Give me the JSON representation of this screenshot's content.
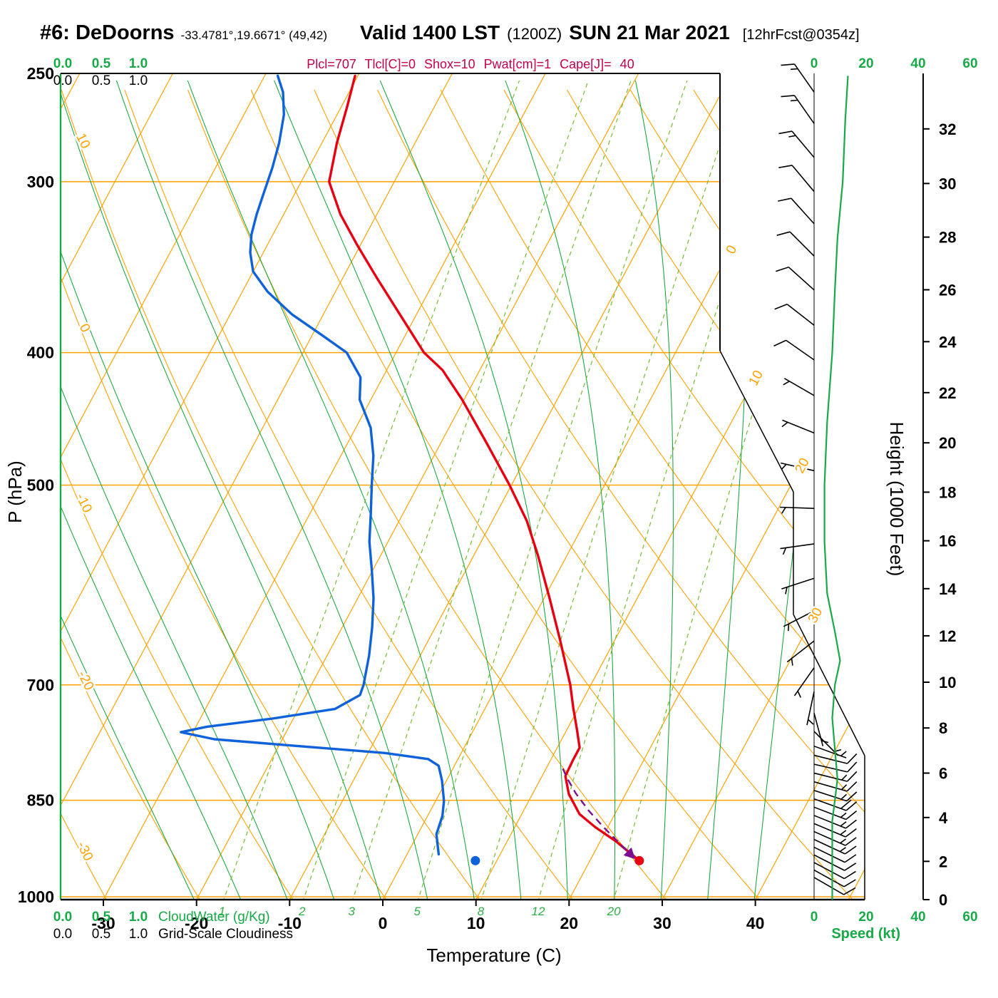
{
  "colors": {
    "orange": "#ffa203",
    "green": "#13a53b",
    "green_dash": "#77bb33",
    "green_ui": "#17aa47",
    "blue": "#0f62d9",
    "red": "#e60012",
    "purple": "#7d1090",
    "params": "#c2004e"
  },
  "chart_data": {
    "type": "skewt-logp",
    "header": {
      "station": "#6: DeDoorns",
      "coords": "-33.4781°,19.6671° (49,42)",
      "valid": "Valid 1400 LST",
      "zulu": "(1200Z)",
      "date": "SUN 21 Mar 2021",
      "fcst": "[12hrFcst@0354z]"
    },
    "params_line": "Plcl=707 Tlcl[C]=0 Shox=10 Pwat[cm]=1 Cape[J]= 40",
    "axes": {
      "pressure": {
        "label": "P (hPa)",
        "ticks": [
          250,
          300,
          400,
          500,
          700,
          850,
          1000
        ]
      },
      "temperature": {
        "label": "Temperature (C)",
        "ticks": [
          -30,
          -20,
          -10,
          0,
          10,
          20,
          30,
          40
        ]
      },
      "height": {
        "label": "Height (1000 Feet)",
        "ticks": [
          0,
          2,
          4,
          6,
          8,
          10,
          12,
          14,
          16,
          18,
          20,
          22,
          24,
          26,
          28,
          30,
          32
        ]
      },
      "speed": {
        "label": "Speed (kt)",
        "ticks": [
          0,
          20,
          40,
          60
        ]
      },
      "cloudwater": {
        "label": "CloudWater (g/Kg)",
        "ticks": [
          "0.0",
          "0.5",
          "1.0"
        ]
      },
      "cloudiness": {
        "label": "Grid-Scale Cloudiness",
        "ticks": [
          "0.0",
          "0.5",
          "1.0"
        ]
      }
    },
    "background": {
      "isotherms": {
        "start": -80,
        "end": 50,
        "step": 10,
        "right_labels": [
          0,
          10,
          20,
          30
        ]
      },
      "dry_adiabats": {
        "start": -40,
        "end": 120,
        "step": 10,
        "left_labels": [
          10,
          0,
          -10,
          -20,
          -30
        ]
      },
      "moist_adiabats": {
        "start": -20,
        "end": 40,
        "step": 5
      },
      "mixing_ratios": [
        1,
        2,
        3,
        5,
        8,
        12,
        20
      ]
    },
    "temperature_profile": [
      [
        941,
        25.3
      ],
      [
        911,
        21.7
      ],
      [
        889,
        18.6
      ],
      [
        870,
        16.2
      ],
      [
        841,
        13.9
      ],
      [
        816,
        12.5
      ],
      [
        794,
        12.4
      ],
      [
        778,
        12.4
      ],
      [
        755,
        11.1
      ],
      [
        727,
        9.4
      ],
      [
        700,
        7.8
      ],
      [
        650,
        4.2
      ],
      [
        605,
        0.6
      ],
      [
        563,
        -3.1
      ],
      [
        531,
        -6.3
      ],
      [
        500,
        -10.2
      ],
      [
        465,
        -15.2
      ],
      [
        433,
        -20.2
      ],
      [
        412,
        -24.0
      ],
      [
        400,
        -27.0
      ],
      [
        375,
        -31.8
      ],
      [
        353,
        -36.3
      ],
      [
        334,
        -40.3
      ],
      [
        317,
        -43.9
      ],
      [
        300,
        -47.0
      ],
      [
        281,
        -48.4
      ],
      [
        264,
        -49.4
      ],
      [
        251,
        -50.3
      ]
    ],
    "dewpoint_profile": [
      [
        931,
        3.4
      ],
      [
        900,
        2.0
      ],
      [
        873,
        1.6
      ],
      [
        851,
        0.9
      ],
      [
        822,
        -0.5
      ],
      [
        802,
        -1.7
      ],
      [
        793,
        -3.2
      ],
      [
        785,
        -8.2
      ],
      [
        776,
        -17.8
      ],
      [
        767,
        -27.3
      ],
      [
        758,
        -31.3
      ],
      [
        751,
        -28.8
      ],
      [
        741,
        -22.4
      ],
      [
        729,
        -16.1
      ],
      [
        712,
        -14.2
      ],
      [
        700,
        -14.4
      ],
      [
        666,
        -15.5
      ],
      [
        635,
        -16.8
      ],
      [
        605,
        -18.3
      ],
      [
        577,
        -20.1
      ],
      [
        550,
        -22.0
      ],
      [
        524,
        -23.5
      ],
      [
        500,
        -25.0
      ],
      [
        476,
        -26.5
      ],
      [
        454,
        -28.4
      ],
      [
        433,
        -31.2
      ],
      [
        417,
        -32.4
      ],
      [
        400,
        -35.3
      ],
      [
        388,
        -39.1
      ],
      [
        375,
        -43.4
      ],
      [
        361,
        -47.3
      ],
      [
        349,
        -50.0
      ],
      [
        338,
        -51.4
      ],
      [
        328,
        -52.3
      ],
      [
        317,
        -52.9
      ],
      [
        305,
        -53.4
      ],
      [
        293,
        -53.9
      ],
      [
        281,
        -54.6
      ],
      [
        268,
        -55.7
      ],
      [
        258,
        -57.1
      ],
      [
        251,
        -58.6
      ]
    ],
    "parcel_path": [
      [
        806,
        11.8
      ],
      [
        820,
        12.9
      ],
      [
        840,
        14.6
      ],
      [
        865,
        17.0
      ],
      [
        890,
        19.6
      ],
      [
        915,
        22.3
      ],
      [
        935,
        24.4
      ]
    ],
    "surface_markers": {
      "temperature": {
        "p": 941,
        "t": 25.3
      },
      "dewpoint": {
        "p": 941,
        "t": 7.7
      }
    },
    "wind_levels": [
      [
        258,
        15,
        325
      ],
      [
        272,
        15,
        325
      ],
      [
        288,
        15,
        320
      ],
      [
        305,
        12,
        320
      ],
      [
        322,
        10,
        318
      ],
      [
        340,
        10,
        315
      ],
      [
        360,
        10,
        312
      ],
      [
        382,
        10,
        308
      ],
      [
        405,
        10,
        305
      ],
      [
        430,
        8,
        300
      ],
      [
        458,
        6,
        292
      ],
      [
        488,
        5,
        283
      ],
      [
        520,
        5,
        272
      ],
      [
        552,
        5,
        262
      ],
      [
        585,
        5,
        252
      ],
      [
        618,
        5,
        243
      ],
      [
        650,
        5,
        232
      ],
      [
        680,
        5,
        215
      ],
      [
        708,
        5,
        192
      ],
      [
        734,
        5,
        165
      ],
      [
        757,
        6,
        135
      ],
      [
        776,
        8,
        110
      ],
      [
        788,
        10,
        104
      ],
      [
        800,
        13,
        103
      ],
      [
        812,
        15,
        104
      ],
      [
        824,
        17,
        106
      ],
      [
        836,
        19,
        108
      ],
      [
        848,
        20,
        110
      ],
      [
        860,
        19,
        111
      ],
      [
        872,
        18,
        112
      ],
      [
        884,
        17,
        113
      ],
      [
        896,
        16,
        114
      ],
      [
        908,
        15,
        115
      ],
      [
        920,
        14,
        116
      ],
      [
        932,
        13,
        117
      ],
      [
        944,
        12,
        118
      ],
      [
        956,
        11,
        119
      ],
      [
        968,
        10,
        120
      ]
    ],
    "speed_profile": [
      [
        251,
        13
      ],
      [
        270,
        12
      ],
      [
        300,
        11
      ],
      [
        330,
        9
      ],
      [
        360,
        8
      ],
      [
        400,
        7
      ],
      [
        450,
        5
      ],
      [
        500,
        4
      ],
      [
        550,
        4
      ],
      [
        600,
        5
      ],
      [
        640,
        8
      ],
      [
        672,
        10
      ],
      [
        700,
        8
      ],
      [
        740,
        7
      ],
      [
        780,
        8
      ],
      [
        820,
        9
      ],
      [
        850,
        8
      ],
      [
        880,
        7
      ],
      [
        920,
        7
      ],
      [
        960,
        7
      ],
      [
        1005,
        7
      ]
    ]
  }
}
